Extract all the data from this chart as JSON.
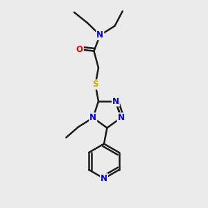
{
  "bg_color": "#ebebeb",
  "bond_color": "#1a1a1a",
  "bond_width": 1.8,
  "atom_colors": {
    "N": "#0000ee",
    "O": "#ee0000",
    "S": "#ccaa00",
    "C": "#1a1a1a"
  },
  "font_size_atom": 8.5
}
